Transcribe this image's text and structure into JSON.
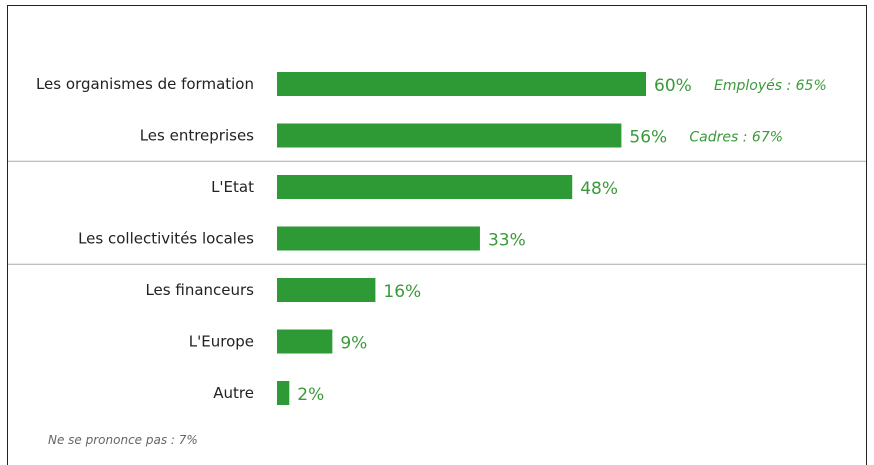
{
  "chart_data": {
    "type": "bar",
    "orientation": "horizontal",
    "categories": [
      "Les organismes de formation",
      "Les entreprises",
      "L'Etat",
      "Les collectivités locales",
      "Les financeurs",
      "L'Europe",
      "Autre"
    ],
    "values": [
      60,
      56,
      48,
      33,
      16,
      9,
      2
    ],
    "value_labels": [
      "60%",
      "56%",
      "48%",
      "33%",
      "16%",
      "9%",
      "2%"
    ],
    "annotations": [
      {
        "category_index": 0,
        "text": "Employés : 65%"
      },
      {
        "category_index": 1,
        "text": "Cadres : 67%"
      }
    ],
    "group_separators_after": [
      1,
      3
    ],
    "footnote": "Ne se prononce pas : 7%",
    "bar_color": "#2e9a35",
    "label_color": "#3a9a3a",
    "xlim": [
      0,
      100
    ],
    "grid": false
  }
}
